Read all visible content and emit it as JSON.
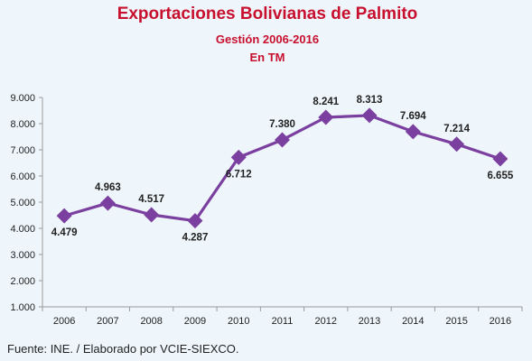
{
  "chart_data": {
    "type": "line",
    "title": "Exportaciones Bolivianas de Palmito",
    "subtitle_lines": [
      "Gestión 2006-2016",
      "En TM"
    ],
    "categories": [
      "2006",
      "2007",
      "2008",
      "2009",
      "2010",
      "2011",
      "2012",
      "2013",
      "2014",
      "2015",
      "2016"
    ],
    "series": [
      {
        "values": [
          4479,
          4963,
          4517,
          4287,
          6712,
          7380,
          8241,
          8313,
          7694,
          7214,
          6655
        ],
        "data_labels": [
          "4.479",
          "4.963",
          "4.517",
          "4.287",
          "6.712",
          "7.380",
          "8.241",
          "8.313",
          "7.694",
          "7.214",
          "6.655"
        ],
        "color": "#7b3fa0"
      }
    ],
    "ylim": [
      1000,
      9000
    ],
    "yticks": [
      1000,
      2000,
      3000,
      4000,
      5000,
      6000,
      7000,
      8000,
      9000
    ],
    "ytick_labels": [
      "1.000",
      "2.000",
      "3.000",
      "4.000",
      "5.000",
      "6.000",
      "7.000",
      "8.000",
      "9.000"
    ],
    "grid": false,
    "legend": "none"
  },
  "source_note": "Fuente: INE. / Elaborado por VCIE-SIEXCO."
}
